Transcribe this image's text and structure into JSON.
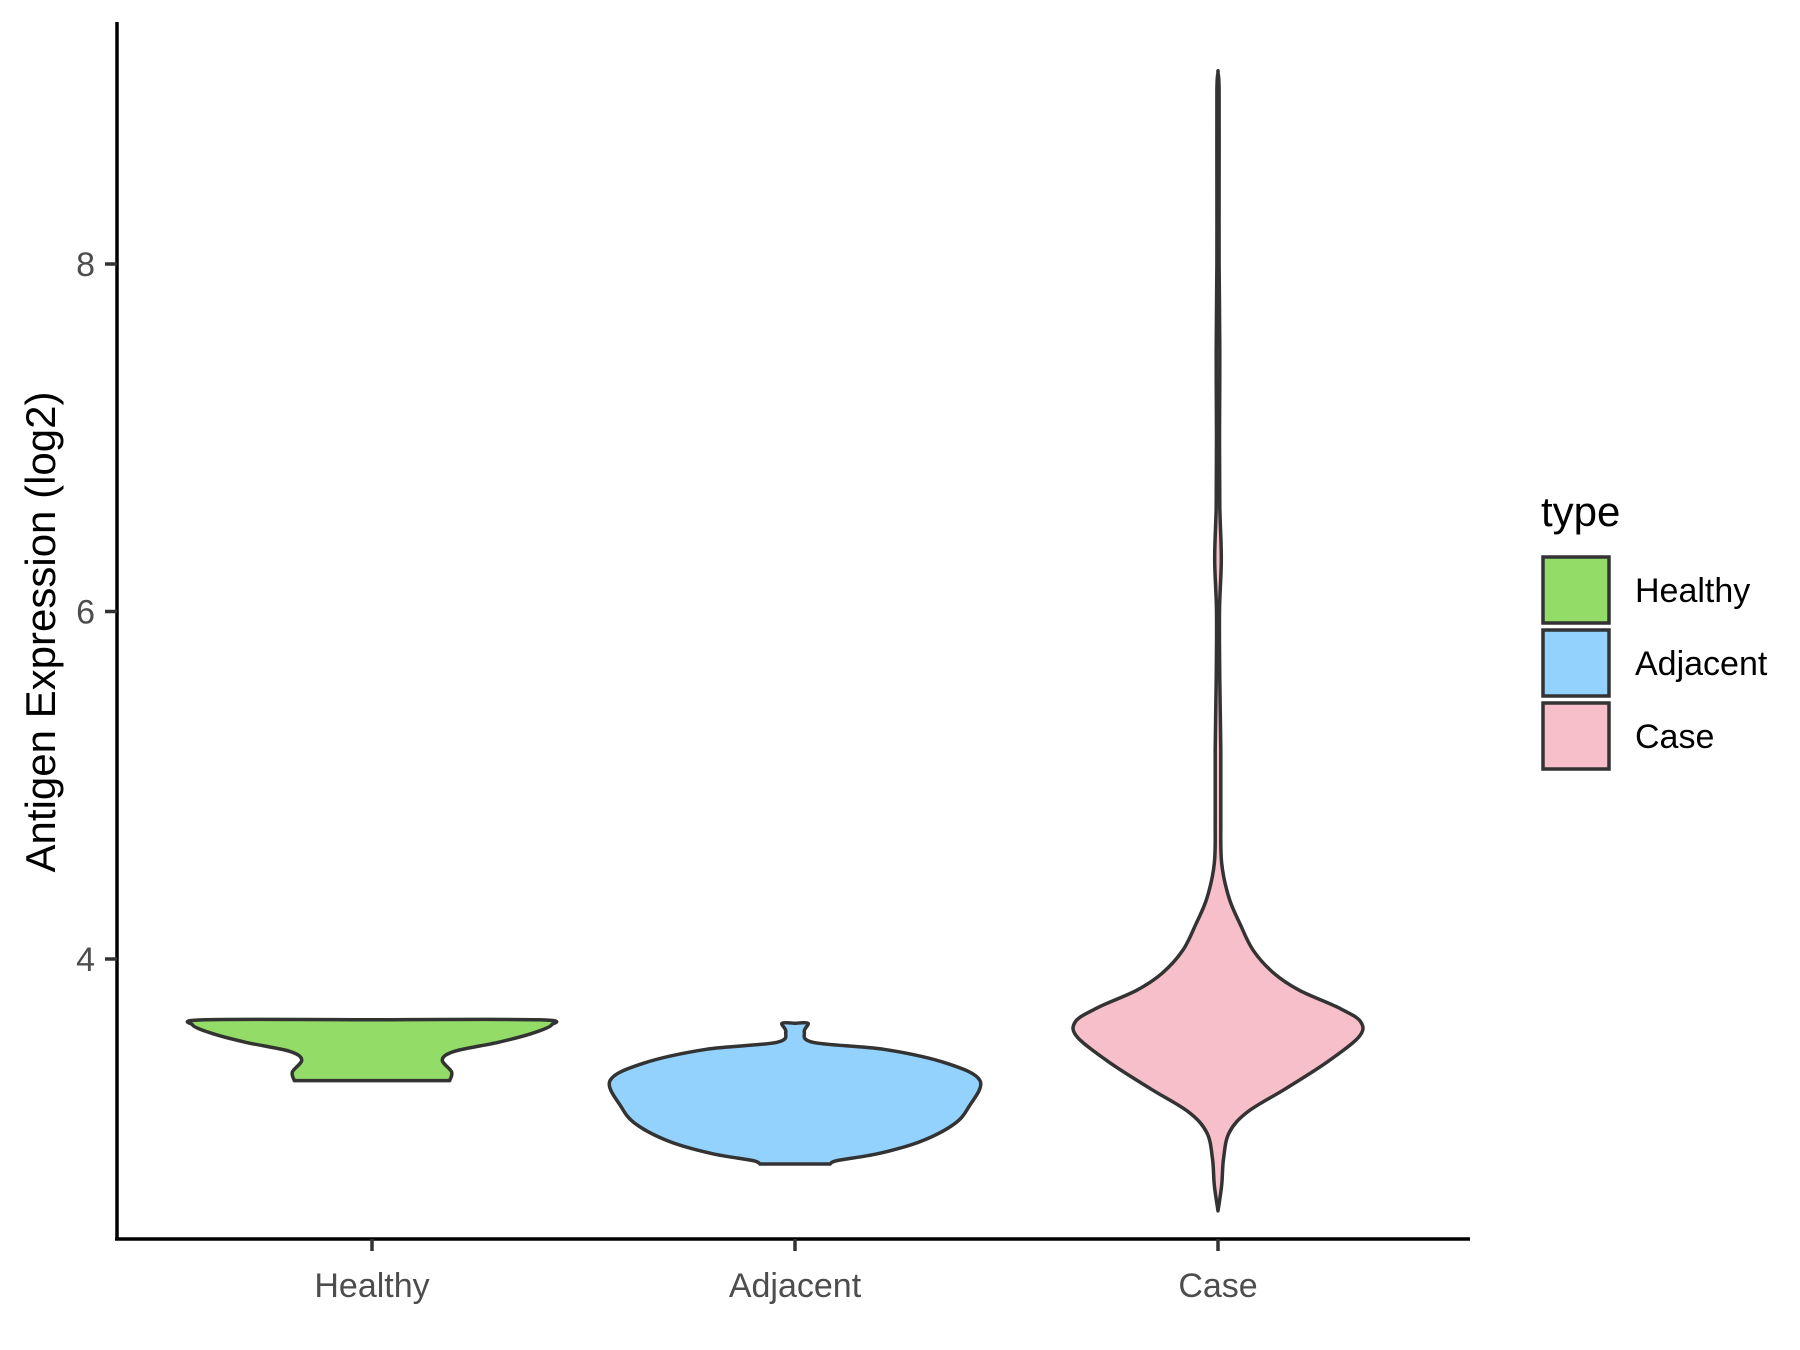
{
  "chart_data": {
    "type": "violin",
    "ylabel": "Antigen Expression (log2)",
    "xlabel": "",
    "ylim": [
      2.4,
      9.4
    ],
    "yticks": [
      4,
      6,
      8
    ],
    "categories": [
      "Healthy",
      "Adjacent",
      "Case"
    ],
    "grid": false,
    "legend": {
      "title": "type",
      "placement": "right",
      "entries": [
        {
          "label": "Healthy",
          "color": "#93DC67"
        },
        {
          "label": "Adjacent",
          "color": "#92D2FD"
        },
        {
          "label": "Case",
          "color": "#F7BFCA"
        }
      ]
    },
    "series": [
      {
        "name": "Healthy",
        "color": "#93DC67",
        "density": [
          [
            3.3,
            0.42
          ],
          [
            3.35,
            0.43
          ],
          [
            3.42,
            0.38
          ],
          [
            3.47,
            0.45
          ],
          [
            3.52,
            0.68
          ],
          [
            3.57,
            0.86
          ],
          [
            3.62,
            0.97
          ],
          [
            3.65,
            0.9
          ],
          [
            3.65,
            0.0
          ]
        ]
      },
      {
        "name": "Adjacent",
        "color": "#92D2FD",
        "density": [
          [
            2.82,
            0.19
          ],
          [
            2.84,
            0.23
          ],
          [
            2.88,
            0.45
          ],
          [
            2.95,
            0.68
          ],
          [
            3.05,
            0.86
          ],
          [
            3.15,
            0.94
          ],
          [
            3.3,
            1.0
          ],
          [
            3.4,
            0.82
          ],
          [
            3.48,
            0.48
          ],
          [
            3.52,
            0.1
          ],
          [
            3.58,
            0.05
          ],
          [
            3.63,
            0.07
          ],
          [
            3.63,
            0.0
          ]
        ]
      },
      {
        "name": "Case",
        "color": "#F7BFCA",
        "density": [
          [
            2.55,
            0.0
          ],
          [
            2.7,
            0.02
          ],
          [
            2.85,
            0.03
          ],
          [
            3.0,
            0.06
          ],
          [
            3.12,
            0.16
          ],
          [
            3.25,
            0.36
          ],
          [
            3.4,
            0.58
          ],
          [
            3.55,
            0.76
          ],
          [
            3.64,
            0.77
          ],
          [
            3.72,
            0.65
          ],
          [
            3.82,
            0.44
          ],
          [
            3.92,
            0.3
          ],
          [
            4.05,
            0.19
          ],
          [
            4.2,
            0.12
          ],
          [
            4.35,
            0.06
          ],
          [
            4.55,
            0.02
          ],
          [
            4.8,
            0.015
          ],
          [
            5.2,
            0.015
          ],
          [
            5.6,
            0.01
          ],
          [
            6.0,
            0.008
          ],
          [
            6.3,
            0.018
          ],
          [
            6.6,
            0.01
          ],
          [
            7.0,
            0.008
          ],
          [
            7.5,
            0.01
          ],
          [
            8.0,
            0.006
          ],
          [
            8.5,
            0.006
          ],
          [
            9.0,
            0.006
          ],
          [
            9.1,
            0.0
          ]
        ]
      }
    ]
  }
}
